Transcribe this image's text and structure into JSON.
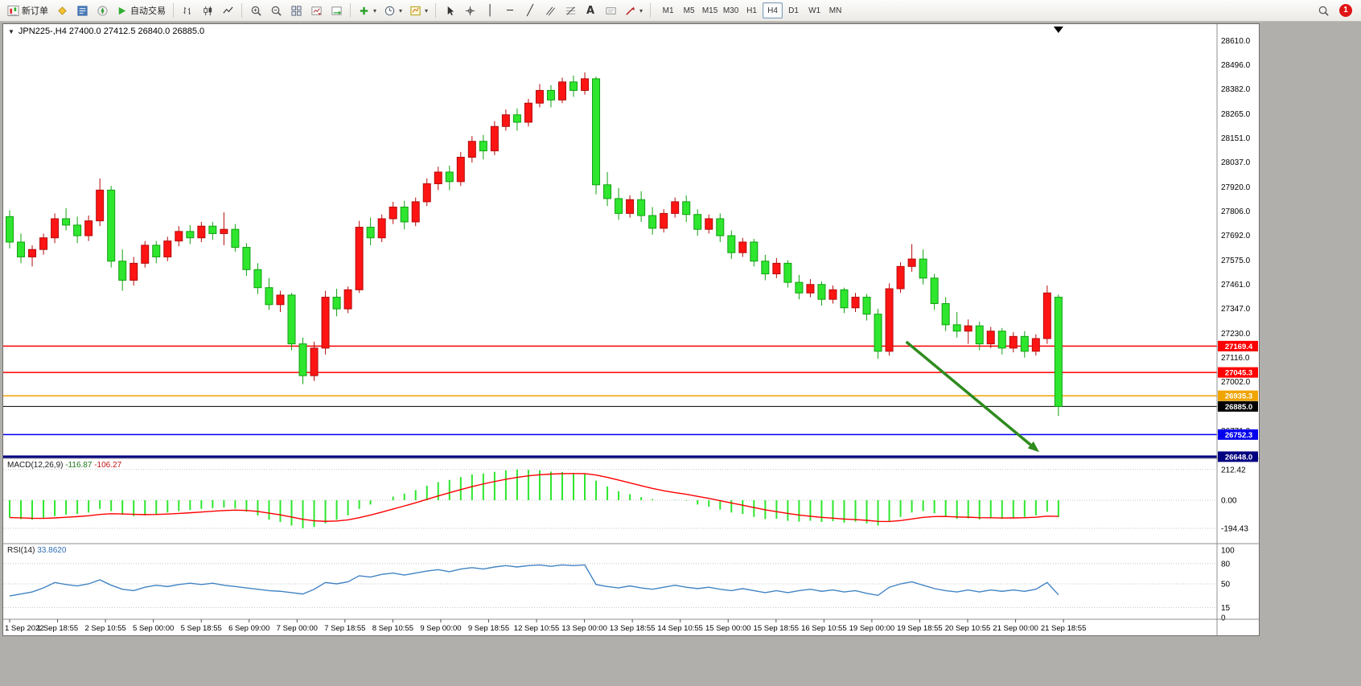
{
  "toolbar": {
    "new_order": "新订单",
    "autotrading": "自动交易",
    "timeframes": [
      "M1",
      "M5",
      "M15",
      "M30",
      "H1",
      "H4",
      "D1",
      "W1",
      "MN"
    ],
    "active_timeframe": "H4",
    "notification_count": "1"
  },
  "chart_header": {
    "title": "JPN225-,H4 27400.0 27412.5 26840.0 26885.0"
  },
  "indicators": {
    "macd": {
      "name": "MACD(12,26,9)",
      "value_main": "-116.87",
      "value_signal": "-106.27"
    },
    "rsi": {
      "name": "RSI(14)",
      "value": "33.8620"
    }
  },
  "chart_data": {
    "type": "candlestick",
    "symbol": "JPN225-",
    "timeframe": "H4",
    "ohlc_current": {
      "open": 27400.0,
      "high": 27412.5,
      "low": 26840.0,
      "close": 26885.0
    },
    "price_range_visible": [
      26640,
      28680
    ],
    "price_axis_ticks": [
      28610,
      28496,
      28382,
      28265,
      28151,
      28037,
      27920,
      27806,
      27692,
      27575,
      27461,
      27347,
      27230,
      27116,
      27002,
      26888,
      26771,
      26657
    ],
    "time_axis_labels": [
      "1 Sep 2022",
      "1 Sep 18:55",
      "2 Sep 10:55",
      "5 Sep 00:00",
      "5 Sep 18:55",
      "6 Sep 09:00",
      "7 Sep 00:00",
      "7 Sep 18:55",
      "8 Sep 10:55",
      "9 Sep 00:00",
      "9 Sep 18:55",
      "12 Sep 10:55",
      "13 Sep 00:00",
      "13 Sep 18:55",
      "14 Sep 10:55",
      "15 Sep 00:00",
      "15 Sep 18:55",
      "16 Sep 10:55",
      "19 Sep 00:00",
      "19 Sep 18:55",
      "20 Sep 10:55",
      "21 Sep 00:00",
      "21 Sep 18:55"
    ],
    "levels": [
      {
        "price": 27169.4,
        "label": "27169.4",
        "color": "#ff0000",
        "width": 1.5,
        "style": "solid"
      },
      {
        "price": 27045.3,
        "label": "27045.3",
        "color": "#ff0000",
        "width": 1.5,
        "style": "solid"
      },
      {
        "price": 26935.3,
        "label": "26935.3",
        "color": "#f0a500",
        "width": 1.5,
        "style": "solid"
      },
      {
        "price": 26885.0,
        "label": "26885.0",
        "color": "#000000",
        "width": 1,
        "style": "solid",
        "role": "current-price"
      },
      {
        "price": 26752.3,
        "label": "26752.3",
        "color": "#0000ee",
        "width": 1.5,
        "style": "solid"
      },
      {
        "price": 26648.0,
        "label": "26648.0",
        "color": "#000080",
        "width": 3,
        "style": "solid"
      }
    ],
    "candles_ohlc": [
      [
        27780,
        27810,
        27630,
        27660
      ],
      [
        27660,
        27700,
        27560,
        27590
      ],
      [
        27590,
        27645,
        27545,
        27625
      ],
      [
        27625,
        27700,
        27600,
        27680
      ],
      [
        27680,
        27795,
        27655,
        27770
      ],
      [
        27770,
        27820,
        27715,
        27740
      ],
      [
        27740,
        27780,
        27655,
        27690
      ],
      [
        27690,
        27785,
        27665,
        27760
      ],
      [
        27760,
        27960,
        27735,
        27905
      ],
      [
        27905,
        27925,
        27540,
        27570
      ],
      [
        27570,
        27625,
        27430,
        27480
      ],
      [
        27480,
        27590,
        27455,
        27560
      ],
      [
        27560,
        27665,
        27540,
        27645
      ],
      [
        27645,
        27665,
        27560,
        27590
      ],
      [
        27590,
        27685,
        27570,
        27665
      ],
      [
        27665,
        27735,
        27640,
        27710
      ],
      [
        27710,
        27740,
        27650,
        27680
      ],
      [
        27680,
        27755,
        27660,
        27735
      ],
      [
        27735,
        27755,
        27670,
        27700
      ],
      [
        27700,
        27800,
        27645,
        27720
      ],
      [
        27720,
        27745,
        27615,
        27635
      ],
      [
        27635,
        27655,
        27500,
        27530
      ],
      [
        27530,
        27560,
        27415,
        27445
      ],
      [
        27445,
        27490,
        27340,
        27365
      ],
      [
        27365,
        27430,
        27330,
        27410
      ],
      [
        27410,
        27420,
        27150,
        27180
      ],
      [
        27180,
        27210,
        26990,
        27030
      ],
      [
        27030,
        27190,
        27005,
        27160
      ],
      [
        27160,
        27430,
        27130,
        27400
      ],
      [
        27400,
        27440,
        27310,
        27345
      ],
      [
        27345,
        27450,
        27325,
        27435
      ],
      [
        27435,
        27760,
        27420,
        27730
      ],
      [
        27730,
        27775,
        27645,
        27680
      ],
      [
        27680,
        27790,
        27660,
        27770
      ],
      [
        27770,
        27850,
        27745,
        27825
      ],
      [
        27825,
        27855,
        27720,
        27755
      ],
      [
        27755,
        27870,
        27735,
        27850
      ],
      [
        27850,
        27960,
        27830,
        27935
      ],
      [
        27935,
        28015,
        27905,
        27990
      ],
      [
        27990,
        28020,
        27905,
        27945
      ],
      [
        27945,
        28085,
        27925,
        28060
      ],
      [
        28060,
        28160,
        28035,
        28135
      ],
      [
        28135,
        28165,
        28050,
        28090
      ],
      [
        28090,
        28230,
        28070,
        28205
      ],
      [
        28205,
        28285,
        28185,
        28260
      ],
      [
        28260,
        28290,
        28185,
        28225
      ],
      [
        28225,
        28335,
        28205,
        28315
      ],
      [
        28315,
        28405,
        28295,
        28375
      ],
      [
        28375,
        28400,
        28295,
        28330
      ],
      [
        28330,
        28435,
        28315,
        28415
      ],
      [
        28415,
        28445,
        28345,
        28375
      ],
      [
        28375,
        28460,
        28355,
        28430
      ],
      [
        28430,
        28440,
        27885,
        27930
      ],
      [
        27930,
        27990,
        27830,
        27865
      ],
      [
        27865,
        27915,
        27765,
        27795
      ],
      [
        27795,
        27880,
        27775,
        27860
      ],
      [
        27860,
        27900,
        27755,
        27785
      ],
      [
        27785,
        27825,
        27695,
        27725
      ],
      [
        27725,
        27815,
        27705,
        27795
      ],
      [
        27795,
        27870,
        27775,
        27850
      ],
      [
        27850,
        27880,
        27755,
        27790
      ],
      [
        27790,
        27815,
        27690,
        27720
      ],
      [
        27720,
        27790,
        27700,
        27770
      ],
      [
        27770,
        27795,
        27660,
        27690
      ],
      [
        27690,
        27715,
        27580,
        27610
      ],
      [
        27610,
        27680,
        27590,
        27660
      ],
      [
        27660,
        27675,
        27545,
        27570
      ],
      [
        27570,
        27600,
        27480,
        27510
      ],
      [
        27510,
        27585,
        27490,
        27560
      ],
      [
        27560,
        27575,
        27445,
        27470
      ],
      [
        27470,
        27505,
        27390,
        27420
      ],
      [
        27420,
        27485,
        27400,
        27460
      ],
      [
        27460,
        27475,
        27360,
        27390
      ],
      [
        27390,
        27455,
        27370,
        27435
      ],
      [
        27435,
        27445,
        27325,
        27350
      ],
      [
        27350,
        27420,
        27330,
        27400
      ],
      [
        27400,
        27415,
        27290,
        27320
      ],
      [
        27320,
        27345,
        27110,
        27145
      ],
      [
        27145,
        27465,
        27125,
        27440
      ],
      [
        27440,
        27565,
        27420,
        27545
      ],
      [
        27545,
        27650,
        27520,
        27580
      ],
      [
        27580,
        27625,
        27460,
        27490
      ],
      [
        27490,
        27510,
        27340,
        27370
      ],
      [
        27370,
        27400,
        27240,
        27270
      ],
      [
        27270,
        27330,
        27210,
        27240
      ],
      [
        27240,
        27295,
        27180,
        27265
      ],
      [
        27265,
        27285,
        27150,
        27180
      ],
      [
        27180,
        27260,
        27160,
        27240
      ],
      [
        27240,
        27255,
        27130,
        27160
      ],
      [
        27160,
        27235,
        27140,
        27215
      ],
      [
        27215,
        27240,
        27115,
        27145
      ],
      [
        27145,
        27225,
        27125,
        27205
      ],
      [
        27205,
        27455,
        27180,
        27420
      ],
      [
        27400,
        27412.5,
        26840,
        26885
      ]
    ],
    "macd": {
      "params": "12,26,9",
      "scale_ticks": [
        212.42,
        0,
        -194.43
      ],
      "last_main": -116.87,
      "last_signal": -106.27,
      "histogram": [
        -120,
        -130,
        -135,
        -128,
        -110,
        -100,
        -95,
        -85,
        -60,
        -75,
        -100,
        -110,
        -105,
        -95,
        -85,
        -75,
        -68,
        -60,
        -55,
        -50,
        -58,
        -80,
        -105,
        -135,
        -150,
        -175,
        -194,
        -185,
        -160,
        -135,
        -105,
        -60,
        -30,
        0,
        25,
        45,
        70,
        100,
        125,
        140,
        160,
        178,
        185,
        196,
        206,
        212,
        210,
        207,
        198,
        195,
        188,
        182,
        135,
        95,
        62,
        42,
        22,
        8,
        0,
        2,
        -4,
        -30,
        -45,
        -65,
        -85,
        -95,
        -115,
        -130,
        -128,
        -142,
        -148,
        -142,
        -150,
        -145,
        -155,
        -148,
        -160,
        -175,
        -150,
        -115,
        -85,
        -75,
        -90,
        -110,
        -128,
        -125,
        -133,
        -125,
        -128,
        -120,
        -115,
        -105,
        -80,
        -116.87
      ]
    },
    "rsi": {
      "period": 14,
      "scale_ticks": [
        100,
        80,
        50,
        15,
        0
      ],
      "last": 33.862,
      "values": [
        32,
        35,
        38,
        44,
        52,
        49,
        47,
        50,
        56,
        48,
        42,
        40,
        45,
        48,
        46,
        49,
        51,
        49,
        51,
        48,
        46,
        44,
        42,
        40,
        39,
        37,
        35,
        42,
        52,
        50,
        53,
        62,
        60,
        64,
        66,
        63,
        66,
        69,
        71,
        68,
        72,
        74,
        72,
        75,
        77,
        75,
        77,
        78,
        76,
        78,
        77,
        78,
        49,
        46,
        44,
        47,
        44,
        42,
        45,
        48,
        45,
        43,
        45,
        42,
        40,
        43,
        40,
        37,
        40,
        37,
        40,
        42,
        39,
        41,
        38,
        40,
        36,
        33,
        45,
        50,
        53,
        48,
        43,
        40,
        38,
        41,
        38,
        41,
        39,
        41,
        39,
        42,
        52,
        33.86
      ]
    },
    "annotation_arrow": {
      "from_bar": 79.5,
      "from_price": 27190,
      "to_bar": 91.3,
      "to_price": 26670,
      "color": "#2e8b1e"
    },
    "colors": {
      "bull": "#ff1414",
      "bear": "#2ee62e",
      "bull_border": "#b40b0b",
      "bear_border": "#12a112",
      "macd_histogram": "#2ee62e",
      "macd_signal": "#ff0000",
      "rsi_line": "#4284c4",
      "current_price_badge": "#000000"
    }
  }
}
